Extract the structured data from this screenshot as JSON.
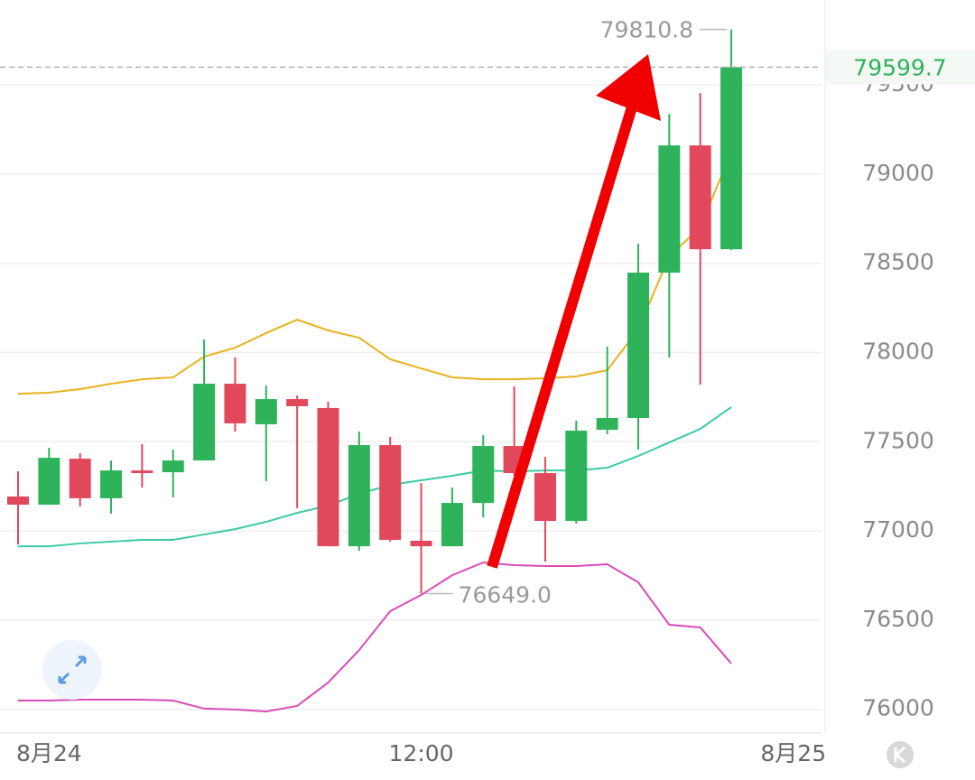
{
  "chart_data": {
    "type": "candlestick",
    "categories": [
      null,
      "8月24",
      null,
      null,
      null,
      null,
      null,
      null,
      null,
      null,
      null,
      null,
      null,
      "12:00",
      null,
      null,
      null,
      null,
      null,
      null,
      null,
      null,
      null,
      null,
      null,
      "8月25"
    ],
    "open": [
      77193,
      77147,
      77405,
      77183,
      77339,
      77329,
      77395,
      77825,
      77598,
      77739,
      77689,
      76914,
      77481,
      76945,
      76914,
      77157,
      77476,
      77324,
      77056,
      77567,
      77633,
      78448,
      79161,
      78579,
      null,
      null
    ],
    "high": [
      77334,
      77466,
      77436,
      77395,
      77486,
      77456,
      78073,
      77972,
      77815,
      77759,
      77724,
      77557,
      77527,
      77268,
      77243,
      77537,
      77810,
      77415,
      77618,
      78033,
      78609,
      79338,
      79454,
      79810.8,
      null,
      null
    ],
    "low": [
      76924,
      77147,
      77137,
      77097,
      77243,
      77188,
      77395,
      77557,
      77279,
      77127,
      76914,
      76889,
      76940,
      76649,
      76914,
      77076,
      77309,
      76828,
      77041,
      77542,
      77456,
      77972,
      77820,
      78574,
      null,
      null
    ],
    "close": [
      77147,
      77410,
      77183,
      77339,
      77324,
      77395,
      77825,
      77603,
      77739,
      77699,
      76914,
      77481,
      76950,
      76914,
      77157,
      77476,
      77324,
      77056,
      77562,
      77633,
      78448,
      79161,
      78579,
      79599.7,
      null,
      null
    ],
    "up_color": "#2eb35a",
    "down_color": "#e2485b",
    "lines": [
      {
        "color": "#e8b21e",
        "values": [
          77769,
          77775,
          77795,
          77825,
          77850,
          77861,
          77977,
          78027,
          78109,
          78184,
          78124,
          78083,
          77962,
          77911,
          77861,
          77850,
          77850,
          77856,
          77866,
          77901,
          78129,
          78539,
          78701,
          79126,
          null,
          null
        ]
      },
      {
        "color": "#3ccaa6",
        "values": [
          76914,
          76914,
          76930,
          76940,
          76950,
          76950,
          76980,
          77010,
          77051,
          77101,
          77142,
          77208,
          77258,
          77284,
          77309,
          77339,
          77334,
          77339,
          77339,
          77354,
          77420,
          77496,
          77572,
          77694,
          null,
          null
        ]
      },
      {
        "color": "#d94bb8",
        "values": [
          76049,
          76049,
          76054,
          76054,
          76054,
          76049,
          76004,
          75999,
          75988,
          76019,
          76150,
          76332,
          76550,
          76641,
          76752,
          76823,
          76808,
          76803,
          76803,
          76813,
          76712,
          76474,
          76459,
          76257,
          null,
          null
        ]
      }
    ],
    "ylim": [
      75867,
      79976
    ],
    "yticks": [
      76000,
      76500,
      77000,
      77500,
      78000,
      78500,
      79000,
      79500
    ],
    "grid": true,
    "annotations": [
      {
        "value": 79810.8,
        "label": "79810.8"
      },
      {
        "value": 76649,
        "label": "76649.0"
      }
    ],
    "current_price": {
      "value": 79599.7,
      "label": "79599.7"
    },
    "current_price_color": "#2eb35a"
  }
}
